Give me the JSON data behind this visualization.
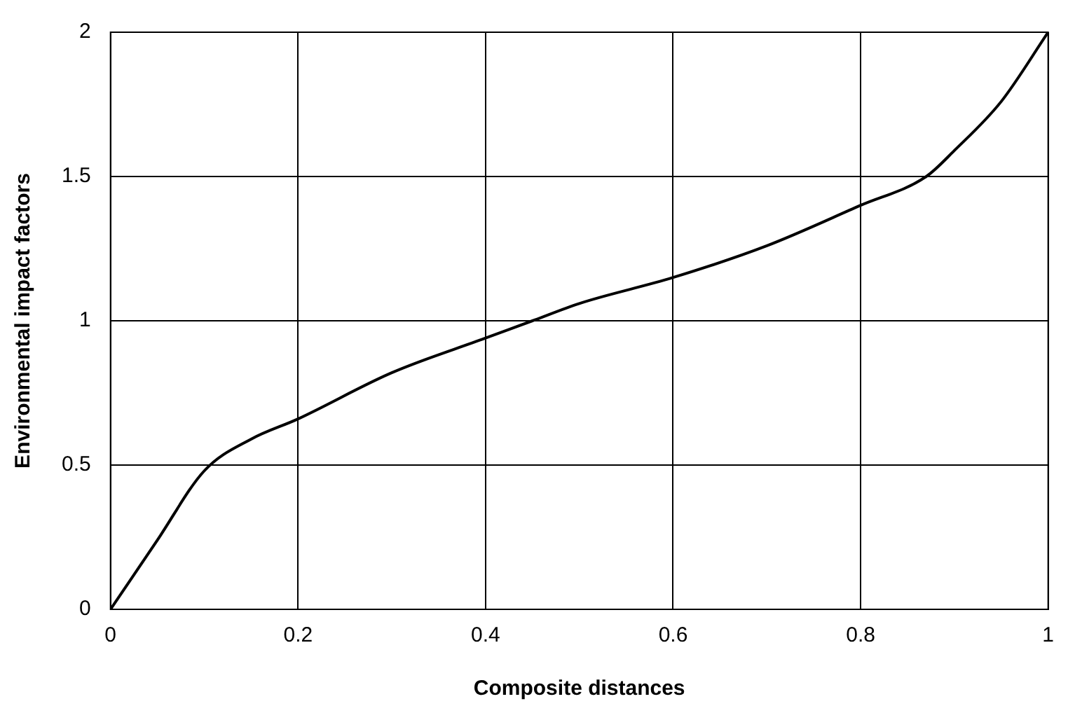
{
  "chart_data": {
    "type": "line",
    "xlabel": "Composite distances",
    "ylabel": "Environmental impact factors",
    "x": [
      0,
      0.05,
      0.1,
      0.15,
      0.2,
      0.3,
      0.4,
      0.45,
      0.5,
      0.6,
      0.7,
      0.8,
      0.87,
      0.9,
      0.95,
      1
    ],
    "series": [
      {
        "color": "#000000",
        "values": [
          0,
          0.24,
          0.48,
          0.59,
          0.66,
          0.82,
          0.94,
          1.0,
          1.06,
          1.15,
          1.26,
          1.4,
          1.5,
          1.59,
          1.76,
          2.0
        ]
      }
    ],
    "xlim": [
      0,
      1
    ],
    "xticks": [
      0,
      0.2,
      0.4,
      0.6,
      0.8,
      1
    ],
    "ylim": [
      0,
      2
    ],
    "yticks": [
      0,
      0.5,
      1,
      1.5,
      2
    ],
    "grid": true,
    "legend": false,
    "marker": "none",
    "line_style": "solid"
  }
}
